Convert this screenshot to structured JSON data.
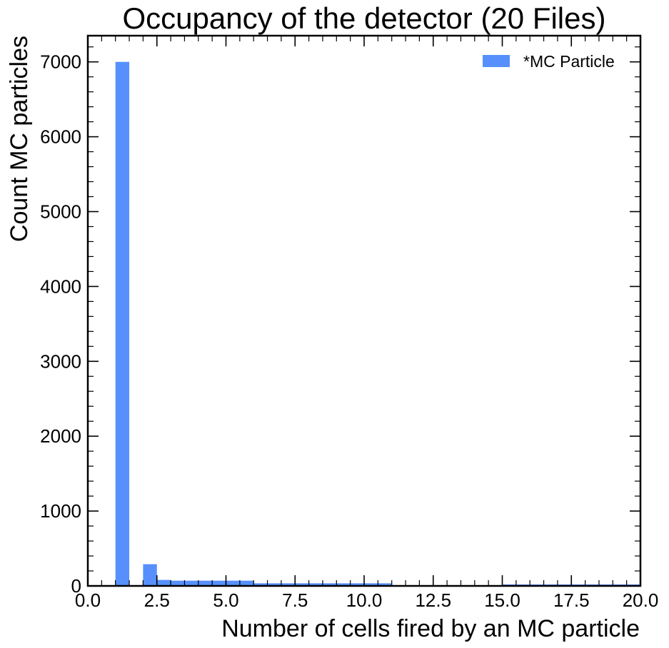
{
  "chart_data": {
    "type": "bar",
    "title": "Occupancy of the detector (20 Files)",
    "xlabel": "Number of cells fired by an MC particle",
    "ylabel": "Count MC particles",
    "xlim": [
      0,
      20
    ],
    "ylim": [
      0,
      7350
    ],
    "x_ticks": [
      "0.0",
      "2.5",
      "5.0",
      "7.5",
      "10.0",
      "12.5",
      "15.0",
      "17.5",
      "20.0"
    ],
    "y_ticks": [
      "0",
      "1000",
      "2000",
      "3000",
      "4000",
      "5000",
      "6000",
      "7000"
    ],
    "bin_width": 0.5,
    "series": [
      {
        "name": "*MC Particle",
        "color": "#5790fc",
        "bin_starts": [
          1.0,
          2.0,
          2.5,
          3.0,
          3.5,
          4.0,
          4.5,
          5.0,
          5.5,
          6.0,
          6.5,
          7.0,
          7.5,
          8.0,
          8.5,
          9.0,
          9.5,
          10.0,
          10.5,
          15.0,
          15.5,
          16.0,
          16.5,
          17.0,
          17.5,
          18.0,
          18.5,
          19.0,
          19.5
        ],
        "values": [
          7000,
          290,
          80,
          70,
          70,
          70,
          70,
          70,
          70,
          35,
          35,
          35,
          35,
          35,
          35,
          35,
          35,
          35,
          35,
          20,
          20,
          20,
          20,
          20,
          20,
          20,
          20,
          20,
          20
        ]
      }
    ],
    "legend_position": "top-right",
    "grid": false
  }
}
